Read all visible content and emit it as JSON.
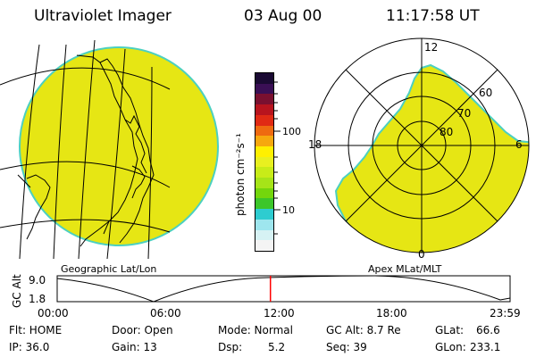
{
  "header": {
    "instrument": "Ultraviolet Imager",
    "date": "03 Aug 00",
    "time": "11:17:58 UT"
  },
  "geo_panel": {
    "label": "Geographic Lat/Lon"
  },
  "apex_panel": {
    "label": "Apex MLat/MLT",
    "mlt_labels": [
      "12",
      "18",
      "6",
      "0"
    ],
    "mlat_labels": [
      "60",
      "70",
      "80"
    ]
  },
  "colorbar": {
    "unit_label": "photon cm⁻²s⁻¹",
    "ticks": [
      "100",
      "10"
    ],
    "scale": "log",
    "colors": [
      "#1a0a33",
      "#3a0f55",
      "#7a1030",
      "#b8141e",
      "#e02a14",
      "#ee6a10",
      "#f6a80e",
      "#fff000",
      "#e8f020",
      "#c8ec18",
      "#a6e418",
      "#74d60c",
      "#3cc62a",
      "#2eccd0",
      "#9ee6ee",
      "#d6f2f4",
      "#f4f4f4"
    ]
  },
  "altitude_plot": {
    "ylabel": "GC Alt",
    "yticks": [
      "9.0",
      "1.8"
    ],
    "xticks": [
      "00:00",
      "06:00",
      "12:00",
      "18:00",
      "23:59"
    ],
    "current_time_marker_hours": 11.3,
    "marker_color": "#ff0000"
  },
  "status": {
    "row1": {
      "flt": "Flt: HOME",
      "door": "Door: Open",
      "mode": "Mode: Normal",
      "gcalt": "GC Alt: 8.7 Re",
      "glat_label": "GLat:",
      "glat_value": "66.6"
    },
    "row2": {
      "ip": "IP: 36.0",
      "gain": "Gain: 13",
      "dsp_label": "Dsp:",
      "dsp_value": "5.2",
      "seq": "Seq: 39",
      "glon_label": "GLon:",
      "glon_value": "233.1"
    }
  },
  "colors": {
    "aurora_fill": "#e6e614",
    "aurora_edge": "#4cd0c0"
  }
}
